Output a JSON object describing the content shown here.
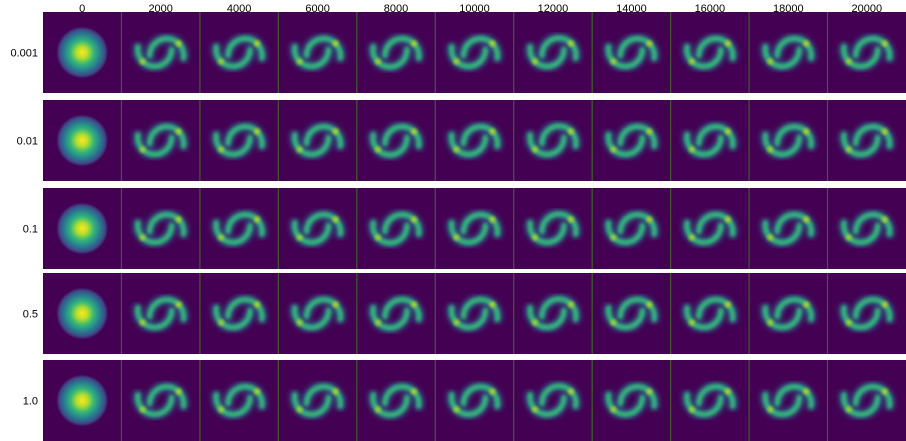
{
  "chart_data": {
    "type": "heatmap",
    "title": "",
    "xlabel": "",
    "ylabel": "",
    "column_labels": [
      "0",
      "2000",
      "4000",
      "6000",
      "8000",
      "10000",
      "12000",
      "14000",
      "16000",
      "18000",
      "20000"
    ],
    "row_labels": [
      "0.001",
      "0.01",
      "0.1",
      "0.5",
      "1.0"
    ],
    "colormap": "viridis",
    "background_color": "#440154",
    "cells": [
      {
        "row": "0.001",
        "panels": [
          {
            "column": "0",
            "shape": "gaussian-blob"
          },
          {
            "column": "2000",
            "shape": "two-moons"
          },
          {
            "column": "4000",
            "shape": "two-moons"
          },
          {
            "column": "6000",
            "shape": "two-moons"
          },
          {
            "column": "8000",
            "shape": "two-moons"
          },
          {
            "column": "10000",
            "shape": "two-moons"
          },
          {
            "column": "12000",
            "shape": "two-moons"
          },
          {
            "column": "14000",
            "shape": "two-moons"
          },
          {
            "column": "16000",
            "shape": "two-moons"
          },
          {
            "column": "18000",
            "shape": "two-moons"
          },
          {
            "column": "20000",
            "shape": "two-moons"
          }
        ]
      },
      {
        "row": "0.01",
        "panels": [
          {
            "column": "0",
            "shape": "gaussian-blob"
          },
          {
            "column": "2000",
            "shape": "two-moons"
          },
          {
            "column": "4000",
            "shape": "two-moons"
          },
          {
            "column": "6000",
            "shape": "two-moons"
          },
          {
            "column": "8000",
            "shape": "two-moons"
          },
          {
            "column": "10000",
            "shape": "two-moons"
          },
          {
            "column": "12000",
            "shape": "two-moons"
          },
          {
            "column": "14000",
            "shape": "two-moons"
          },
          {
            "column": "16000",
            "shape": "two-moons"
          },
          {
            "column": "18000",
            "shape": "two-moons"
          },
          {
            "column": "20000",
            "shape": "two-moons"
          }
        ]
      },
      {
        "row": "0.1",
        "panels": [
          {
            "column": "0",
            "shape": "gaussian-blob"
          },
          {
            "column": "2000",
            "shape": "two-moons"
          },
          {
            "column": "4000",
            "shape": "two-moons"
          },
          {
            "column": "6000",
            "shape": "two-moons"
          },
          {
            "column": "8000",
            "shape": "two-moons"
          },
          {
            "column": "10000",
            "shape": "two-moons"
          },
          {
            "column": "12000",
            "shape": "two-moons"
          },
          {
            "column": "14000",
            "shape": "two-moons"
          },
          {
            "column": "16000",
            "shape": "two-moons"
          },
          {
            "column": "18000",
            "shape": "two-moons"
          },
          {
            "column": "20000",
            "shape": "two-moons"
          }
        ]
      },
      {
        "row": "0.5",
        "panels": [
          {
            "column": "0",
            "shape": "gaussian-blob"
          },
          {
            "column": "2000",
            "shape": "two-moons"
          },
          {
            "column": "4000",
            "shape": "two-moons"
          },
          {
            "column": "6000",
            "shape": "two-moons"
          },
          {
            "column": "8000",
            "shape": "two-moons"
          },
          {
            "column": "10000",
            "shape": "two-moons"
          },
          {
            "column": "12000",
            "shape": "two-moons"
          },
          {
            "column": "14000",
            "shape": "two-moons"
          },
          {
            "column": "16000",
            "shape": "two-moons"
          },
          {
            "column": "18000",
            "shape": "two-moons"
          },
          {
            "column": "20000",
            "shape": "two-moons"
          }
        ]
      },
      {
        "row": "1.0",
        "panels": [
          {
            "column": "0",
            "shape": "gaussian-blob"
          },
          {
            "column": "2000",
            "shape": "two-moons"
          },
          {
            "column": "4000",
            "shape": "two-moons"
          },
          {
            "column": "6000",
            "shape": "two-moons"
          },
          {
            "column": "8000",
            "shape": "two-moons"
          },
          {
            "column": "10000",
            "shape": "two-moons"
          },
          {
            "column": "12000",
            "shape": "two-moons"
          },
          {
            "column": "14000",
            "shape": "two-moons"
          },
          {
            "column": "16000",
            "shape": "two-moons"
          },
          {
            "column": "18000",
            "shape": "two-moons"
          },
          {
            "column": "20000",
            "shape": "two-moons"
          }
        ]
      }
    ]
  }
}
